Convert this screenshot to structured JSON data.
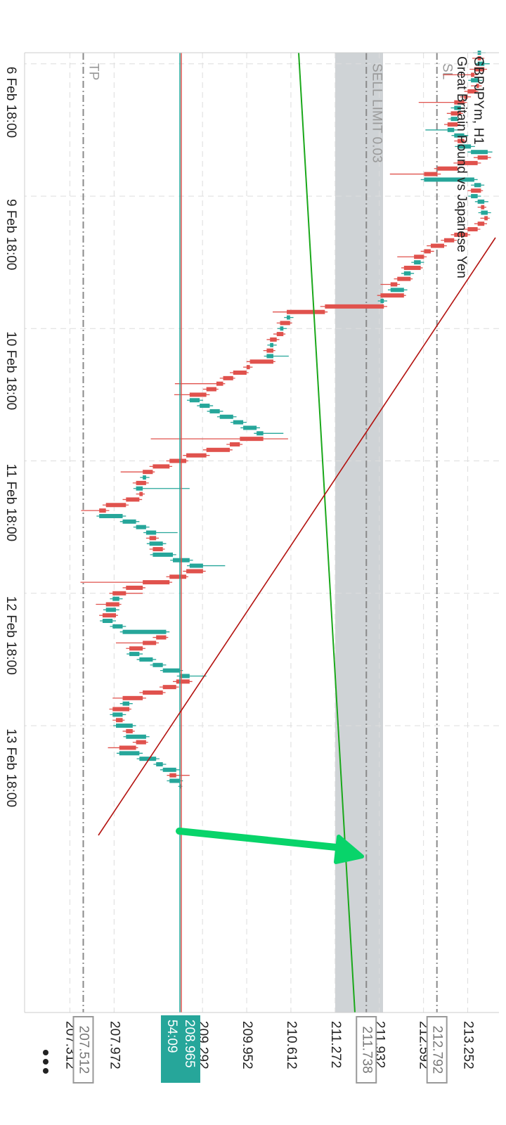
{
  "chart_data": {
    "type": "candlestick",
    "title": "GBPJPYm, H1",
    "subtitle": "Great Britain Pound vs Japanese Yen",
    "up_color": "#26a69a",
    "down_color": "#e0524d",
    "xlim": [
      0,
      174
    ],
    "xticks": [
      {
        "value": 2,
        "label": "6 Feb 18:00"
      },
      {
        "value": 26,
        "label": "9 Feb 18:00"
      },
      {
        "value": 50,
        "label": "10 Feb 18:00"
      },
      {
        "value": 74,
        "label": "11 Feb 18:00"
      },
      {
        "value": 98,
        "label": "12 Feb 18:00"
      },
      {
        "value": 122,
        "label": "13 Feb 18:00"
      }
    ],
    "ylim": [
      206.636,
      213.666
    ],
    "yticks": [
      207.312,
      207.972,
      209.292,
      209.952,
      210.612,
      211.272,
      211.932,
      212.592,
      213.252
    ],
    "grid": true,
    "price_lines": [
      {
        "name": "TP",
        "value": 207.512
      },
      {
        "name": "SL",
        "value": 212.792
      },
      {
        "name": "SELL LIMIT 0.03",
        "value": 211.738
      }
    ],
    "last_price": {
      "value": 208.965,
      "countdown": "54:09"
    },
    "ohlc": [
      [
        213.4,
        213.52,
        213.33,
        213.45
      ],
      [
        213.45,
        213.5,
        213.32,
        213.4
      ],
      [
        213.4,
        213.58,
        213.36,
        213.5
      ],
      [
        213.5,
        213.54,
        213.28,
        213.35
      ],
      [
        213.35,
        213.4,
        212.88,
        213.3
      ],
      [
        213.3,
        213.47,
        213.26,
        213.42
      ],
      [
        213.42,
        213.46,
        213.3,
        213.38
      ],
      [
        213.38,
        213.41,
        213.2,
        213.25
      ],
      [
        213.25,
        213.3,
        213.14,
        213.2
      ],
      [
        213.2,
        213.24,
        212.52,
        213.05
      ],
      [
        213.05,
        213.2,
        213.0,
        213.15
      ],
      [
        213.15,
        213.18,
        212.94,
        213.0
      ],
      [
        213.0,
        213.16,
        212.96,
        213.1
      ],
      [
        213.1,
        213.14,
        212.9,
        212.95
      ],
      [
        212.95,
        213.1,
        212.62,
        213.05
      ],
      [
        213.05,
        213.26,
        213.01,
        213.2
      ],
      [
        213.2,
        213.24,
        213.05,
        213.1
      ],
      [
        213.1,
        213.36,
        213.06,
        213.3
      ],
      [
        213.3,
        213.62,
        213.25,
        213.55
      ],
      [
        213.55,
        213.6,
        213.34,
        213.4
      ],
      [
        213.4,
        213.45,
        213.04,
        213.1
      ],
      [
        213.1,
        213.14,
        212.75,
        212.8
      ],
      [
        212.8,
        212.85,
        212.09,
        212.6
      ],
      [
        212.6,
        213.4,
        212.55,
        213.35
      ],
      [
        213.35,
        213.5,
        213.3,
        213.45
      ],
      [
        213.45,
        213.48,
        213.25,
        213.3
      ],
      [
        213.3,
        213.45,
        213.26,
        213.4
      ],
      [
        213.4,
        213.56,
        213.36,
        213.5
      ],
      [
        213.5,
        213.53,
        213.4,
        213.45
      ],
      [
        213.45,
        213.6,
        213.41,
        213.55
      ],
      [
        213.55,
        213.58,
        213.44,
        213.5
      ],
      [
        213.5,
        213.54,
        213.35,
        213.4
      ],
      [
        213.4,
        213.44,
        213.2,
        213.25
      ],
      [
        213.25,
        213.29,
        213.0,
        213.05
      ],
      [
        213.05,
        213.09,
        212.85,
        212.9
      ],
      [
        212.9,
        212.94,
        212.64,
        212.7
      ],
      [
        212.7,
        212.75,
        212.55,
        212.6
      ],
      [
        212.6,
        212.64,
        212.2,
        212.45
      ],
      [
        212.45,
        212.6,
        212.41,
        212.55
      ],
      [
        212.55,
        212.58,
        212.26,
        212.3
      ],
      [
        212.3,
        212.45,
        212.26,
        212.4
      ],
      [
        212.4,
        212.43,
        212.15,
        212.2
      ],
      [
        212.2,
        212.24,
        211.95,
        212.1
      ],
      [
        212.1,
        212.35,
        212.06,
        212.3
      ],
      [
        212.3,
        212.33,
        211.9,
        211.95
      ],
      [
        211.95,
        212.05,
        211.91,
        212.0
      ],
      [
        212.0,
        212.05,
        211.05,
        211.12
      ],
      [
        211.12,
        211.16,
        210.34,
        210.55
      ],
      [
        210.55,
        210.65,
        210.51,
        210.6
      ],
      [
        210.6,
        210.63,
        210.4,
        210.45
      ],
      [
        210.45,
        210.55,
        210.41,
        210.5
      ],
      [
        210.5,
        210.53,
        210.35,
        210.4
      ],
      [
        210.4,
        210.44,
        210.25,
        210.3
      ],
      [
        210.3,
        210.4,
        210.26,
        210.35
      ],
      [
        210.35,
        210.38,
        210.2,
        210.25
      ],
      [
        210.25,
        210.58,
        210.21,
        210.35
      ],
      [
        210.35,
        210.38,
        209.95,
        210.0
      ],
      [
        210.0,
        210.04,
        209.9,
        209.95
      ],
      [
        209.95,
        209.98,
        209.7,
        209.75
      ],
      [
        209.75,
        209.78,
        209.55,
        209.6
      ],
      [
        209.6,
        209.63,
        208.88,
        209.5
      ],
      [
        209.5,
        209.53,
        209.3,
        209.35
      ],
      [
        209.35,
        209.4,
        208.87,
        209.1
      ],
      [
        209.1,
        209.3,
        209.06,
        209.25
      ],
      [
        209.25,
        209.45,
        209.21,
        209.4
      ],
      [
        209.4,
        209.6,
        209.36,
        209.55
      ],
      [
        209.55,
        209.8,
        209.51,
        209.75
      ],
      [
        209.75,
        209.95,
        209.71,
        209.9
      ],
      [
        209.9,
        210.15,
        209.86,
        210.1
      ],
      [
        210.1,
        210.5,
        210.06,
        210.2
      ],
      [
        210.2,
        210.57,
        208.52,
        209.85
      ],
      [
        209.85,
        209.89,
        209.65,
        209.7
      ],
      [
        209.7,
        209.74,
        209.3,
        209.35
      ],
      [
        209.35,
        209.4,
        209.0,
        209.05
      ],
      [
        209.05,
        209.08,
        208.75,
        208.8
      ],
      [
        208.8,
        208.84,
        208.5,
        208.55
      ],
      [
        208.55,
        208.58,
        208.07,
        208.4
      ],
      [
        208.4,
        208.5,
        208.36,
        208.45
      ],
      [
        208.45,
        208.49,
        208.25,
        208.3
      ],
      [
        208.3,
        209.1,
        208.26,
        208.4
      ],
      [
        208.4,
        208.43,
        208.3,
        208.35
      ],
      [
        208.35,
        208.39,
        208.1,
        208.15
      ],
      [
        208.15,
        208.19,
        207.8,
        207.85
      ],
      [
        207.85,
        207.9,
        207.48,
        207.75
      ],
      [
        207.75,
        208.15,
        207.71,
        208.1
      ],
      [
        208.1,
        208.35,
        208.06,
        208.3
      ],
      [
        208.3,
        208.5,
        208.26,
        208.45
      ],
      [
        208.45,
        208.92,
        208.41,
        208.6
      ],
      [
        208.6,
        208.64,
        208.45,
        208.5
      ],
      [
        208.5,
        208.75,
        208.46,
        208.7
      ],
      [
        208.7,
        208.73,
        208.5,
        208.55
      ],
      [
        208.55,
        208.9,
        208.51,
        208.85
      ],
      [
        208.85,
        209.15,
        208.81,
        209.1
      ],
      [
        209.1,
        209.63,
        209.06,
        209.3
      ],
      [
        209.3,
        209.34,
        209.0,
        209.05
      ],
      [
        209.05,
        209.08,
        208.75,
        208.8
      ],
      [
        208.8,
        208.84,
        207.47,
        208.4
      ],
      [
        208.4,
        208.44,
        208.1,
        208.15
      ],
      [
        208.15,
        208.4,
        207.9,
        207.95
      ],
      [
        207.95,
        208.1,
        207.91,
        208.05
      ],
      [
        208.05,
        208.08,
        207.7,
        207.85
      ],
      [
        207.85,
        208.05,
        207.81,
        208.0
      ],
      [
        208.0,
        208.03,
        207.75,
        207.8
      ],
      [
        207.8,
        208.0,
        207.76,
        207.95
      ],
      [
        207.95,
        208.15,
        207.91,
        208.1
      ],
      [
        208.1,
        208.8,
        208.06,
        208.75
      ],
      [
        208.75,
        208.78,
        208.55,
        208.6
      ],
      [
        208.6,
        208.64,
        208.0,
        208.4
      ],
      [
        208.4,
        208.44,
        208.15,
        208.2
      ],
      [
        208.2,
        208.4,
        208.16,
        208.35
      ],
      [
        208.35,
        208.6,
        208.31,
        208.55
      ],
      [
        208.55,
        208.75,
        208.51,
        208.7
      ],
      [
        208.7,
        209.0,
        208.66,
        208.95
      ],
      [
        208.95,
        209.35,
        208.91,
        209.1
      ],
      [
        209.1,
        209.14,
        208.85,
        208.9
      ],
      [
        208.9,
        208.94,
        208.65,
        208.7
      ],
      [
        208.7,
        208.74,
        208.35,
        208.4
      ],
      [
        208.4,
        208.45,
        207.95,
        208.1
      ],
      [
        208.1,
        208.25,
        208.06,
        208.2
      ],
      [
        208.2,
        208.23,
        207.9,
        207.95
      ],
      [
        207.95,
        208.15,
        207.91,
        208.1
      ],
      [
        208.1,
        208.13,
        207.95,
        208.0
      ],
      [
        208.0,
        208.3,
        207.96,
        208.25
      ],
      [
        208.25,
        208.28,
        208.1,
        208.15
      ],
      [
        208.15,
        208.5,
        208.11,
        208.45
      ],
      [
        208.45,
        208.48,
        208.25,
        208.3
      ],
      [
        208.3,
        208.33,
        207.88,
        208.05
      ],
      [
        208.05,
        208.4,
        208.01,
        208.35
      ],
      [
        208.35,
        208.65,
        208.31,
        208.6
      ],
      [
        208.6,
        208.75,
        208.56,
        208.7
      ],
      [
        208.7,
        208.95,
        208.66,
        208.9
      ],
      [
        208.9,
        209.1,
        208.76,
        208.8
      ],
      [
        208.8,
        209.0,
        208.76,
        208.95
      ],
      [
        208.95,
        208.99,
        208.93,
        208.97
      ]
    ]
  }
}
